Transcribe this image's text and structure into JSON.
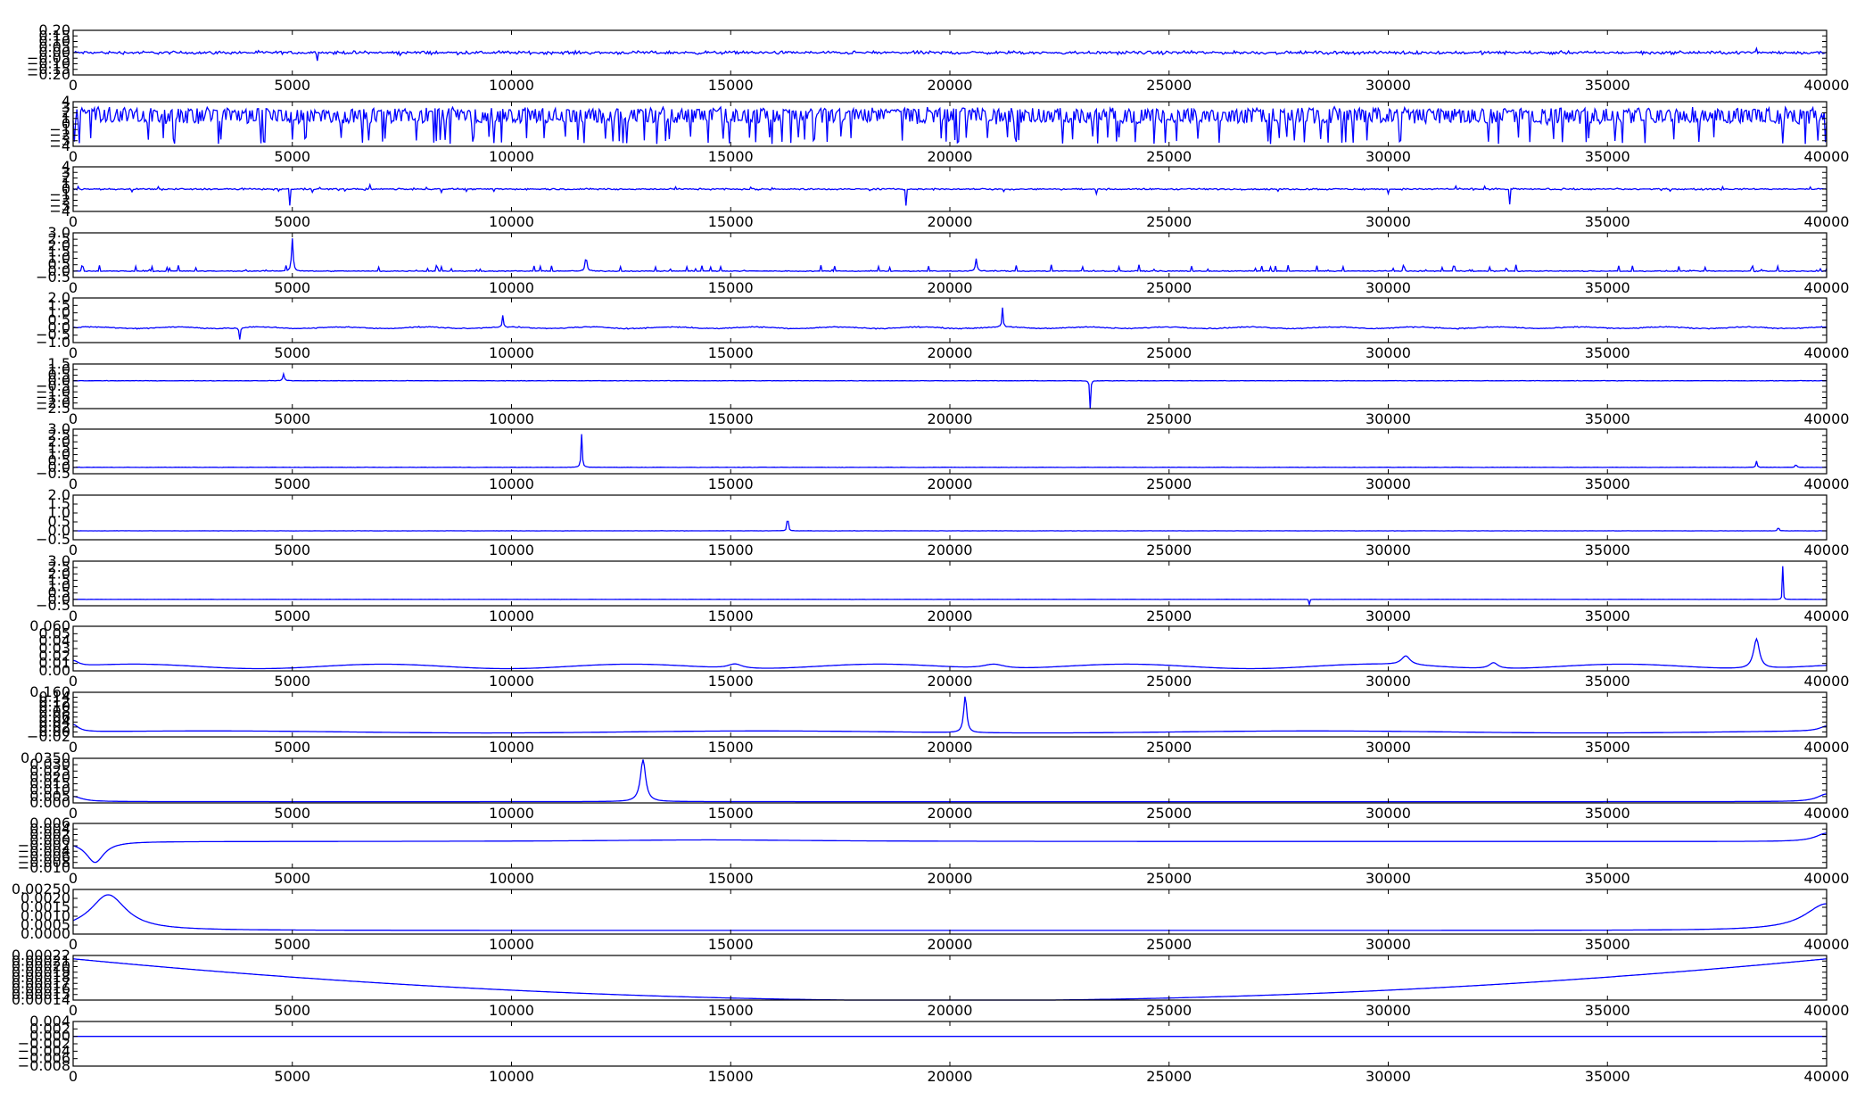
{
  "chart_data": [
    {
      "type": "line",
      "series": [
        {
          "color": "#0000ff"
        }
      ],
      "xlim": [
        0,
        40000
      ],
      "ylim": [
        -0.2,
        0.2
      ],
      "xticks": [
        0,
        5000,
        10000,
        15000,
        20000,
        25000,
        30000,
        35000,
        40000
      ],
      "yticks": [
        -0.2,
        -0.15,
        -0.1,
        -0.05,
        0.0,
        0.05,
        0.1,
        0.15,
        0.2
      ],
      "tick_labels_y": [
        "−0.20",
        "−0.15",
        "−0.10",
        "−0.05",
        "0.00",
        "0.05",
        "0.10",
        "0.15",
        "0.20"
      ],
      "tick_labels_x": [
        "0",
        "5000",
        "10000",
        "15000",
        "20000",
        "25000",
        "30000",
        "35000",
        "40000"
      ]
    },
    {
      "type": "line",
      "series": [
        {
          "color": "#0000ff"
        }
      ],
      "xlim": [
        0,
        40000
      ],
      "ylim": [
        -4,
        4
      ],
      "xticks": [
        0,
        5000,
        10000,
        15000,
        20000,
        25000,
        30000,
        35000,
        40000
      ],
      "yticks": [
        -4,
        -3,
        -2,
        -1,
        0,
        1,
        2,
        3,
        4
      ],
      "tick_labels_y": [
        "−4",
        "−3",
        "−2",
        "−1",
        "0",
        "1",
        "2",
        "3",
        "4"
      ],
      "tick_labels_x": [
        "0",
        "5000",
        "10000",
        "15000",
        "20000",
        "25000",
        "30000",
        "35000",
        "40000"
      ]
    },
    {
      "type": "line",
      "series": [
        {
          "color": "#0000ff"
        }
      ],
      "xlim": [
        0,
        40000
      ],
      "ylim": [
        -4,
        4
      ],
      "xticks": [
        0,
        5000,
        10000,
        15000,
        20000,
        25000,
        30000,
        35000,
        40000
      ],
      "yticks": [
        -4,
        -3,
        -2,
        -1,
        0,
        1,
        2,
        3,
        4
      ],
      "tick_labels_y": [
        "−4",
        "−3",
        "−2",
        "−1",
        "0",
        "1",
        "2",
        "3",
        "4"
      ],
      "tick_labels_x": [
        "0",
        "5000",
        "10000",
        "15000",
        "20000",
        "25000",
        "30000",
        "35000",
        "40000"
      ]
    },
    {
      "type": "line",
      "series": [
        {
          "color": "#0000ff"
        }
      ],
      "xlim": [
        0,
        40000
      ],
      "ylim": [
        -0.5,
        3.0
      ],
      "xticks": [
        0,
        5000,
        10000,
        15000,
        20000,
        25000,
        30000,
        35000,
        40000
      ],
      "yticks": [
        -0.5,
        0.0,
        0.5,
        1.0,
        1.5,
        2.0,
        2.5,
        3.0
      ],
      "tick_labels_y": [
        "−0.5",
        "0.0",
        "0.5",
        "1.0",
        "1.5",
        "2.0",
        "2.5",
        "3.0"
      ],
      "tick_labels_x": [
        "0",
        "5000",
        "10000",
        "15000",
        "20000",
        "25000",
        "30000",
        "35000",
        "40000"
      ]
    },
    {
      "type": "line",
      "series": [
        {
          "color": "#0000ff"
        }
      ],
      "xlim": [
        0,
        40000
      ],
      "ylim": [
        -1.0,
        2.0
      ],
      "xticks": [
        0,
        5000,
        10000,
        15000,
        20000,
        25000,
        30000,
        35000,
        40000
      ],
      "yticks": [
        -1.0,
        -0.5,
        0.0,
        0.5,
        1.0,
        1.5,
        2.0
      ],
      "tick_labels_y": [
        "−1.0",
        "−0.5",
        "0.0",
        "0.5",
        "1.0",
        "1.5",
        "2.0"
      ],
      "tick_labels_x": [
        "0",
        "5000",
        "10000",
        "15000",
        "20000",
        "25000",
        "30000",
        "35000",
        "40000"
      ]
    },
    {
      "type": "line",
      "series": [
        {
          "color": "#0000ff"
        }
      ],
      "xlim": [
        0,
        40000
      ],
      "ylim": [
        -2.5,
        1.5
      ],
      "xticks": [
        0,
        5000,
        10000,
        15000,
        20000,
        25000,
        30000,
        35000,
        40000
      ],
      "yticks": [
        -2.5,
        -2.0,
        -1.5,
        -1.0,
        -0.5,
        0.0,
        0.5,
        1.0,
        1.5
      ],
      "tick_labels_y": [
        "−2.5",
        "−2.0",
        "−1.5",
        "−1.0",
        "−0.5",
        "0.0",
        "0.5",
        "1.0",
        "1.5"
      ],
      "tick_labels_x": [
        "0",
        "5000",
        "10000",
        "15000",
        "20000",
        "25000",
        "30000",
        "35000",
        "40000"
      ]
    },
    {
      "type": "line",
      "series": [
        {
          "color": "#0000ff"
        }
      ],
      "xlim": [
        0,
        40000
      ],
      "ylim": [
        -0.5,
        3.0
      ],
      "xticks": [
        0,
        5000,
        10000,
        15000,
        20000,
        25000,
        30000,
        35000,
        40000
      ],
      "yticks": [
        -0.5,
        0.0,
        0.5,
        1.0,
        1.5,
        2.0,
        2.5,
        3.0
      ],
      "tick_labels_y": [
        "−0.5",
        "0.0",
        "0.5",
        "1.0",
        "1.5",
        "2.0",
        "2.5",
        "3.0"
      ],
      "tick_labels_x": [
        "0",
        "5000",
        "10000",
        "15000",
        "20000",
        "25000",
        "30000",
        "35000",
        "40000"
      ]
    },
    {
      "type": "line",
      "series": [
        {
          "color": "#0000ff"
        }
      ],
      "xlim": [
        0,
        40000
      ],
      "ylim": [
        -0.5,
        2.0
      ],
      "xticks": [
        0,
        5000,
        10000,
        15000,
        20000,
        25000,
        30000,
        35000,
        40000
      ],
      "yticks": [
        -0.5,
        0.0,
        0.5,
        1.0,
        1.5,
        2.0
      ],
      "tick_labels_y": [
        "−0.5",
        "0.0",
        "0.5",
        "1.0",
        "1.5",
        "2.0"
      ],
      "tick_labels_x": [
        "0",
        "5000",
        "10000",
        "15000",
        "20000",
        "25000",
        "30000",
        "35000",
        "40000"
      ]
    },
    {
      "type": "line",
      "series": [
        {
          "color": "#0000ff"
        }
      ],
      "xlim": [
        0,
        40000
      ],
      "ylim": [
        -0.5,
        3.0
      ],
      "xticks": [
        0,
        5000,
        10000,
        15000,
        20000,
        25000,
        30000,
        35000,
        40000
      ],
      "yticks": [
        -0.5,
        0.0,
        0.5,
        1.0,
        1.5,
        2.0,
        2.5,
        3.0
      ],
      "tick_labels_y": [
        "−0.5",
        "0.0",
        "0.5",
        "1.0",
        "1.5",
        "2.0",
        "2.5",
        "3.0"
      ],
      "tick_labels_x": [
        "0",
        "5000",
        "10000",
        "15000",
        "20000",
        "25000",
        "30000",
        "35000",
        "40000"
      ]
    },
    {
      "type": "line",
      "series": [
        {
          "color": "#0000ff"
        }
      ],
      "xlim": [
        0,
        40000
      ],
      "ylim": [
        0.0,
        0.06
      ],
      "xticks": [
        0,
        5000,
        10000,
        15000,
        20000,
        25000,
        30000,
        35000,
        40000
      ],
      "yticks": [
        0.0,
        0.01,
        0.02,
        0.03,
        0.04,
        0.05,
        0.06
      ],
      "tick_labels_y": [
        "0.00",
        "0.01",
        "0.02",
        "0.03",
        "0.04",
        "0.05",
        "0.060"
      ],
      "tick_labels_x": [
        "0",
        "5000",
        "10000",
        "15000",
        "20000",
        "25000",
        "30000",
        "35000",
        "40000"
      ]
    },
    {
      "type": "line",
      "series": [
        {
          "color": "#0000ff"
        }
      ],
      "xlim": [
        0,
        40000
      ],
      "ylim": [
        -0.02,
        0.16
      ],
      "xticks": [
        0,
        5000,
        10000,
        15000,
        20000,
        25000,
        30000,
        35000,
        40000
      ],
      "yticks": [
        -0.02,
        0.0,
        0.02,
        0.04,
        0.06,
        0.08,
        0.1,
        0.12,
        0.14,
        0.16
      ],
      "tick_labels_y": [
        "−0.02",
        "0.00",
        "0.02",
        "0.04",
        "0.06",
        "0.08",
        "0.10",
        "0.12",
        "0.14",
        "0.160"
      ],
      "tick_labels_x": [
        "0",
        "5000",
        "10000",
        "15000",
        "20000",
        "25000",
        "30000",
        "35000",
        "40000"
      ]
    },
    {
      "type": "line",
      "series": [
        {
          "color": "#0000ff"
        }
      ],
      "xlim": [
        0,
        40000
      ],
      "ylim": [
        0.0,
        0.035
      ],
      "xticks": [
        0,
        5000,
        10000,
        15000,
        20000,
        25000,
        30000,
        35000,
        40000
      ],
      "yticks": [
        0.0,
        0.005,
        0.01,
        0.015,
        0.02,
        0.025,
        0.03,
        0.035
      ],
      "tick_labels_y": [
        "0.000",
        "0.005",
        "0.010",
        "0.015",
        "0.020",
        "0.025",
        "0.030",
        "0.0350"
      ],
      "tick_labels_x": [
        "0",
        "5000",
        "10000",
        "15000",
        "20000",
        "25000",
        "30000",
        "35000",
        "40000"
      ]
    },
    {
      "type": "line",
      "series": [
        {
          "color": "#0000ff"
        }
      ],
      "xlim": [
        0,
        40000
      ],
      "ylim": [
        -0.01,
        0.006
      ],
      "xticks": [
        0,
        5000,
        10000,
        15000,
        20000,
        25000,
        30000,
        35000,
        40000
      ],
      "yticks": [
        -0.01,
        -0.008,
        -0.006,
        -0.004,
        -0.002,
        0.0,
        0.002,
        0.004,
        0.006
      ],
      "tick_labels_y": [
        "−0.010",
        "−0.008",
        "−0.006",
        "−0.004",
        "−0.002",
        "0.000",
        "0.002",
        "0.004",
        "0.006"
      ],
      "tick_labels_x": [
        "0",
        "5000",
        "10000",
        "15000",
        "20000",
        "25000",
        "30000",
        "35000",
        "40000"
      ]
    },
    {
      "type": "line",
      "series": [
        {
          "color": "#0000ff"
        }
      ],
      "xlim": [
        0,
        40000
      ],
      "ylim": [
        0.0,
        0.0025
      ],
      "xticks": [
        0,
        5000,
        10000,
        15000,
        20000,
        25000,
        30000,
        35000,
        40000
      ],
      "yticks": [
        0.0,
        0.0005,
        0.001,
        0.0015,
        0.002,
        0.0025
      ],
      "tick_labels_y": [
        "0.0000",
        "0.0005",
        "0.0010",
        "0.0015",
        "0.0020",
        "0.00250"
      ],
      "tick_labels_x": [
        "0",
        "5000",
        "10000",
        "15000",
        "20000",
        "25000",
        "30000",
        "35000",
        "40000"
      ]
    },
    {
      "type": "line",
      "series": [
        {
          "color": "#0000ff"
        }
      ],
      "xlim": [
        0,
        40000
      ],
      "ylim": [
        0.00014,
        0.00022
      ],
      "xticks": [
        0,
        5000,
        10000,
        15000,
        20000,
        25000,
        30000,
        35000,
        40000
      ],
      "yticks": [
        0.00014,
        0.00015,
        0.00016,
        0.00017,
        0.00018,
        0.00019,
        0.0002,
        0.00021,
        0.00022
      ],
      "tick_labels_y": [
        "0.00014",
        "0.00015",
        "0.00016",
        "0.00017",
        "0.00018",
        "0.00019",
        "0.00020",
        "0.00021",
        "0.00022"
      ],
      "tick_labels_x": [
        "0",
        "5000",
        "10000",
        "15000",
        "20000",
        "25000",
        "30000",
        "35000",
        "40000"
      ]
    },
    {
      "type": "line",
      "series": [
        {
          "color": "#0000ff"
        }
      ],
      "xlim": [
        0,
        40000
      ],
      "ylim": [
        -0.008,
        0.004
      ],
      "xticks": [
        0,
        5000,
        10000,
        15000,
        20000,
        25000,
        30000,
        35000,
        40000
      ],
      "yticks": [
        -0.008,
        -0.006,
        -0.004,
        -0.002,
        0.0,
        0.002,
        0.004
      ],
      "tick_labels_y": [
        "−0.008",
        "−0.006",
        "−0.004",
        "−0.002",
        "0.000",
        "0.002",
        "0.004"
      ],
      "tick_labels_x": [
        "0",
        "5000",
        "10000",
        "15000",
        "20000",
        "25000",
        "30000",
        "35000",
        "40000"
      ]
    }
  ]
}
